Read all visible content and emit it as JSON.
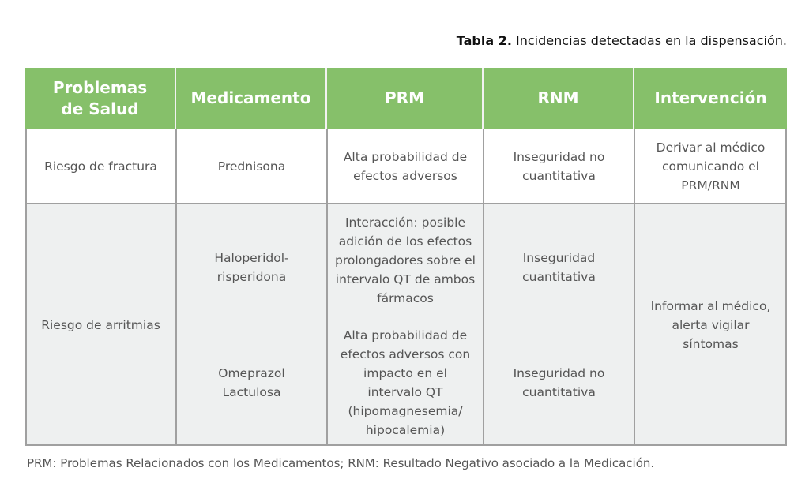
{
  "caption": {
    "label": "Tabla 2.",
    "text": " Incidencias detectadas en la dispensación."
  },
  "table": {
    "headers": [
      "Problemas de Salud",
      "Medicamento",
      "PRM",
      "RNM",
      "Intervención"
    ],
    "rows": [
      {
        "problema": "Riesgo de fractura",
        "medicamento": "Prednisona",
        "prm": "Alta probabilidad de efectos adversos",
        "rnm": "Inseguridad no cuantitativa",
        "intervencion": "Derivar al médico comunicando el PRM/RNM"
      },
      {
        "problema": "Riesgo de arritmias",
        "sub": [
          {
            "medicamento": "Haloperidol-risperidona",
            "prm": "Interacción: posible adición de los efectos prolongadores sobre el intervalo QT de ambos fármacos",
            "rnm": "Inseguridad cuantitativa"
          },
          {
            "medicamento": "Omeprazol Lactulosa",
            "prm": "Alta probabilidad de efectos adversos con impacto en el intervalo QT (hipomagnesemia/ hipocalemia)",
            "rnm": "Inseguridad no cuantitativa"
          }
        ],
        "intervencion": "Informar al médico, alerta vigilar síntomas"
      }
    ]
  },
  "footnote": "PRM: Problemas Relacionados con los Medicamentos; RNM: Resultado Negativo asociado a la Medicación.",
  "colors": {
    "header": "#86c06a",
    "row_alt": "#eef0f0"
  }
}
